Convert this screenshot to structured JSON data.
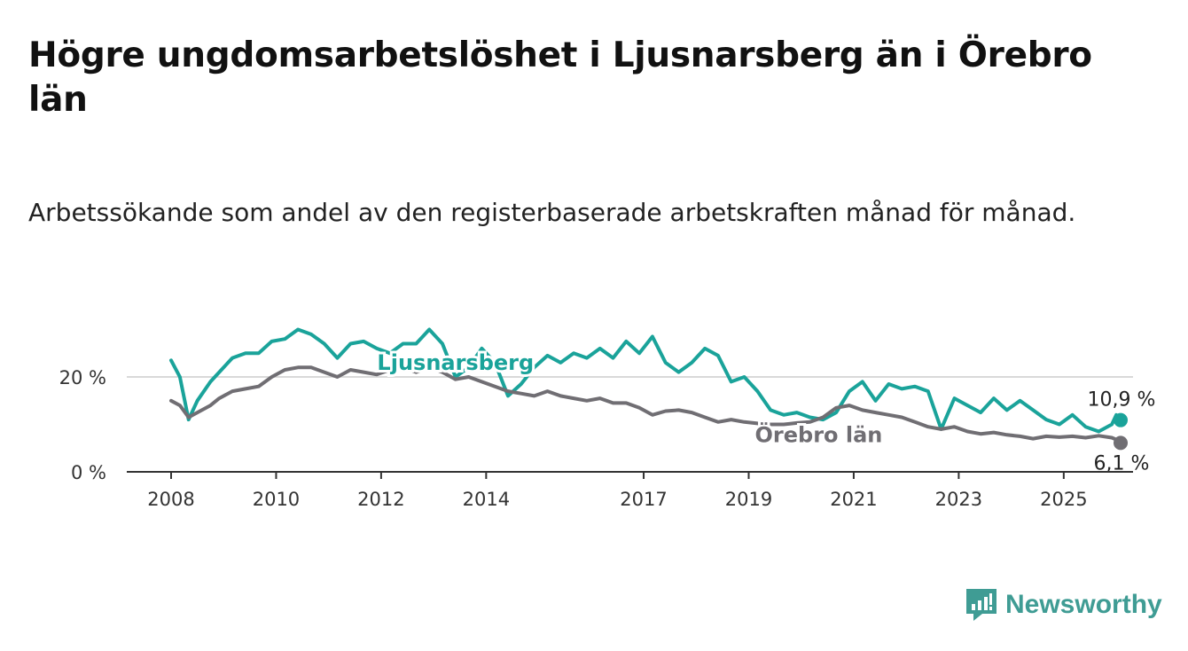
{
  "title": "Högre ungdomsarbetslöshet i Ljusnarsberg än i Örebro län",
  "subtitle": "Arbetssökande som andel av den registerbaserade arbetskraften månad för månad.",
  "brand": {
    "name": "Newsworthy",
    "icon": "newsworthy-logo-icon",
    "color": "#3f9c94"
  },
  "chart_data": {
    "type": "line",
    "title": "Högre ungdomsarbetslöshet i Ljusnarsberg än i Örebro län",
    "subtitle": "Arbetssökande som andel av den registerbaserade arbetskraften månad för månad.",
    "xlabel": "",
    "ylabel": "",
    "x_ticks": [
      "2008",
      "2010",
      "2012",
      "2014",
      "2017",
      "2019",
      "2021",
      "2023",
      "2025"
    ],
    "y_ticks": [
      "0 %",
      "20 %"
    ],
    "xlim": [
      "2008-01",
      "2026-02"
    ],
    "ylim": [
      0,
      30
    ],
    "grid": "horizontal",
    "legend": "inline labels",
    "series": [
      {
        "name": "Ljusnarsberg",
        "color": "#1aa39a",
        "end_label": "10,9 %",
        "points": [
          [
            "2008-01",
            23.5
          ],
          [
            "2008-03",
            20.0
          ],
          [
            "2008-05",
            11.0
          ],
          [
            "2008-07",
            15.0
          ],
          [
            "2008-10",
            19.0
          ],
          [
            "2008-12",
            21.0
          ],
          [
            "2009-03",
            24.0
          ],
          [
            "2009-06",
            25.0
          ],
          [
            "2009-09",
            25.0
          ],
          [
            "2009-12",
            27.5
          ],
          [
            "2010-03",
            28.0
          ],
          [
            "2010-06",
            30.0
          ],
          [
            "2010-09",
            29.0
          ],
          [
            "2010-12",
            27.0
          ],
          [
            "2011-03",
            24.0
          ],
          [
            "2011-06",
            27.0
          ],
          [
            "2011-09",
            27.5
          ],
          [
            "2011-12",
            26.0
          ],
          [
            "2012-03",
            25.0
          ],
          [
            "2012-06",
            27.0
          ],
          [
            "2012-09",
            27.0
          ],
          [
            "2012-12",
            30.0
          ],
          [
            "2013-03",
            27.0
          ],
          [
            "2013-06",
            20.0
          ],
          [
            "2013-09",
            22.0
          ],
          [
            "2013-12",
            26.0
          ],
          [
            "2014-03",
            23.0
          ],
          [
            "2014-06",
            16.0
          ],
          [
            "2014-09",
            18.5
          ],
          [
            "2014-12",
            22.0
          ],
          [
            "2015-03",
            24.5
          ],
          [
            "2015-06",
            23.0
          ],
          [
            "2015-09",
            25.0
          ],
          [
            "2015-12",
            24.0
          ],
          [
            "2016-03",
            26.0
          ],
          [
            "2016-06",
            24.0
          ],
          [
            "2016-09",
            27.5
          ],
          [
            "2016-12",
            25.0
          ],
          [
            "2017-03",
            28.5
          ],
          [
            "2017-06",
            23.0
          ],
          [
            "2017-09",
            21.0
          ],
          [
            "2017-12",
            23.0
          ],
          [
            "2018-03",
            26.0
          ],
          [
            "2018-06",
            24.5
          ],
          [
            "2018-09",
            19.0
          ],
          [
            "2018-12",
            20.0
          ],
          [
            "2019-03",
            17.0
          ],
          [
            "2019-06",
            13.0
          ],
          [
            "2019-09",
            12.0
          ],
          [
            "2019-12",
            12.5
          ],
          [
            "2020-03",
            11.5
          ],
          [
            "2020-06",
            11.0
          ],
          [
            "2020-09",
            12.5
          ],
          [
            "2020-12",
            17.0
          ],
          [
            "2021-03",
            19.0
          ],
          [
            "2021-06",
            15.0
          ],
          [
            "2021-09",
            18.5
          ],
          [
            "2021-12",
            17.5
          ],
          [
            "2022-03",
            18.0
          ],
          [
            "2022-06",
            17.0
          ],
          [
            "2022-09",
            9.0
          ],
          [
            "2022-12",
            15.5
          ],
          [
            "2023-03",
            14.0
          ],
          [
            "2023-06",
            12.5
          ],
          [
            "2023-09",
            15.5
          ],
          [
            "2023-12",
            13.0
          ],
          [
            "2024-03",
            15.0
          ],
          [
            "2024-06",
            13.0
          ],
          [
            "2024-09",
            11.0
          ],
          [
            "2024-12",
            10.0
          ],
          [
            "2025-03",
            12.0
          ],
          [
            "2025-06",
            9.5
          ],
          [
            "2025-09",
            8.5
          ],
          [
            "2025-12",
            10.0
          ],
          [
            "2026-01",
            12.0
          ],
          [
            "2026-02",
            10.9
          ]
        ]
      },
      {
        "name": "Örebro län",
        "color": "#706e73",
        "end_label": "6,1 %",
        "points": [
          [
            "2008-01",
            15.0
          ],
          [
            "2008-03",
            14.0
          ],
          [
            "2008-05",
            11.5
          ],
          [
            "2008-07",
            12.5
          ],
          [
            "2008-10",
            14.0
          ],
          [
            "2008-12",
            15.5
          ],
          [
            "2009-03",
            17.0
          ],
          [
            "2009-06",
            17.5
          ],
          [
            "2009-09",
            18.0
          ],
          [
            "2009-12",
            20.0
          ],
          [
            "2010-03",
            21.5
          ],
          [
            "2010-06",
            22.0
          ],
          [
            "2010-09",
            22.0
          ],
          [
            "2010-12",
            21.0
          ],
          [
            "2011-03",
            20.0
          ],
          [
            "2011-06",
            21.5
          ],
          [
            "2011-09",
            21.0
          ],
          [
            "2011-12",
            20.5
          ],
          [
            "2012-03",
            21.5
          ],
          [
            "2012-06",
            22.0
          ],
          [
            "2012-09",
            21.0
          ],
          [
            "2012-12",
            22.0
          ],
          [
            "2013-03",
            21.0
          ],
          [
            "2013-06",
            19.5
          ],
          [
            "2013-09",
            20.0
          ],
          [
            "2013-12",
            19.0
          ],
          [
            "2014-03",
            18.0
          ],
          [
            "2014-06",
            17.0
          ],
          [
            "2014-09",
            16.5
          ],
          [
            "2014-12",
            16.0
          ],
          [
            "2015-03",
            17.0
          ],
          [
            "2015-06",
            16.0
          ],
          [
            "2015-09",
            15.5
          ],
          [
            "2015-12",
            15.0
          ],
          [
            "2016-03",
            15.5
          ],
          [
            "2016-06",
            14.5
          ],
          [
            "2016-09",
            14.5
          ],
          [
            "2016-12",
            13.5
          ],
          [
            "2017-03",
            12.0
          ],
          [
            "2017-06",
            12.8
          ],
          [
            "2017-09",
            13.0
          ],
          [
            "2017-12",
            12.5
          ],
          [
            "2018-03",
            11.5
          ],
          [
            "2018-06",
            10.5
          ],
          [
            "2018-09",
            11.0
          ],
          [
            "2018-12",
            10.5
          ],
          [
            "2019-03",
            10.2
          ],
          [
            "2019-06",
            10.0
          ],
          [
            "2019-09",
            10.0
          ],
          [
            "2019-12",
            10.3
          ],
          [
            "2020-03",
            10.5
          ],
          [
            "2020-06",
            11.5
          ],
          [
            "2020-09",
            13.5
          ],
          [
            "2020-12",
            14.0
          ],
          [
            "2021-03",
            13.0
          ],
          [
            "2021-06",
            12.5
          ],
          [
            "2021-09",
            12.0
          ],
          [
            "2021-12",
            11.5
          ],
          [
            "2022-03",
            10.5
          ],
          [
            "2022-06",
            9.5
          ],
          [
            "2022-09",
            9.0
          ],
          [
            "2022-12",
            9.5
          ],
          [
            "2023-03",
            8.5
          ],
          [
            "2023-06",
            8.0
          ],
          [
            "2023-09",
            8.3
          ],
          [
            "2023-12",
            7.8
          ],
          [
            "2024-03",
            7.5
          ],
          [
            "2024-06",
            7.0
          ],
          [
            "2024-09",
            7.5
          ],
          [
            "2024-12",
            7.3
          ],
          [
            "2025-03",
            7.5
          ],
          [
            "2025-06",
            7.2
          ],
          [
            "2025-09",
            7.6
          ],
          [
            "2025-12",
            7.2
          ],
          [
            "2026-01",
            6.8
          ],
          [
            "2026-02",
            6.1
          ]
        ]
      }
    ]
  }
}
